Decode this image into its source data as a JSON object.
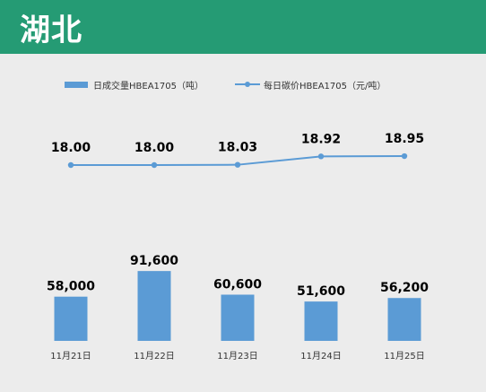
{
  "header": {
    "title": "湖北",
    "color": "#259b74"
  },
  "legend": {
    "bar_label": "日成交量HBEA1705（吨）",
    "line_label": "每日碳价HBEA1705（元/吨）"
  },
  "colors": {
    "bar": "#5b9bd5",
    "line": "#5b9bd5"
  },
  "chart_data": {
    "type": "bar",
    "categories": [
      "11月21日",
      "11月22日",
      "11月23日",
      "11月24日",
      "11月25日"
    ],
    "series": [
      {
        "name": "日成交量HBEA1705（吨）",
        "type": "bar",
        "values": [
          58000,
          91600,
          60600,
          51600,
          56200
        ],
        "labels": [
          "58,000",
          "91,600",
          "60,600",
          "51,600",
          "56,200"
        ]
      },
      {
        "name": "每日碳价HBEA1705（元/吨）",
        "type": "line",
        "values": [
          18.0,
          18.0,
          18.03,
          18.92,
          18.95
        ],
        "labels": [
          "18.00",
          "18.00",
          "18.03",
          "18.92",
          "18.95"
        ]
      }
    ]
  }
}
